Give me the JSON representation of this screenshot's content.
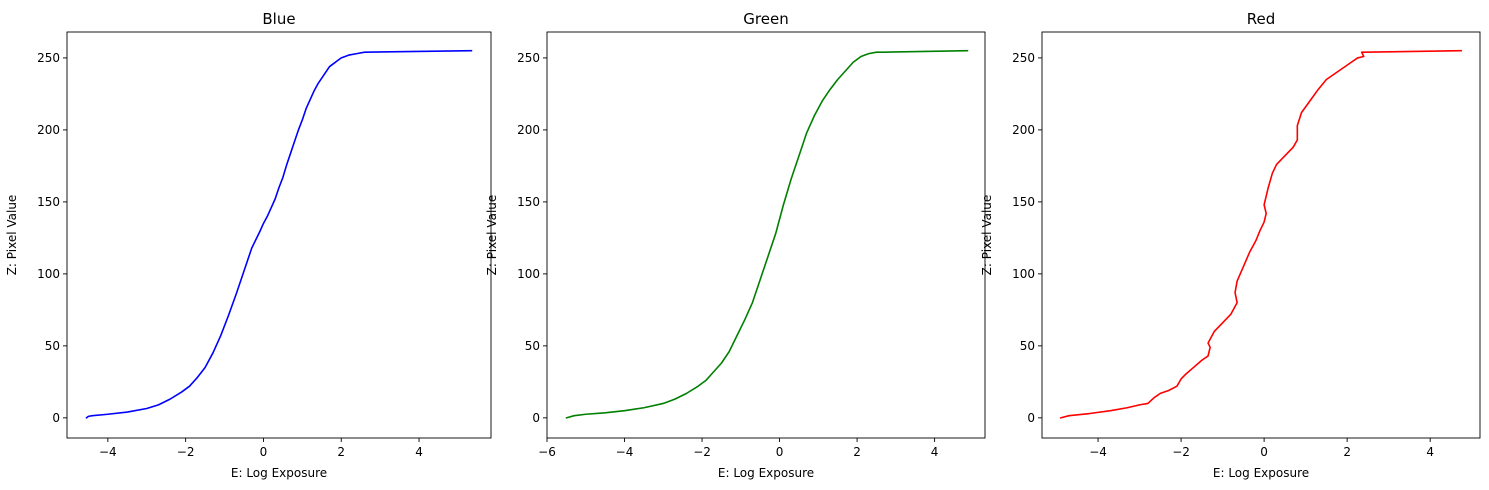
{
  "chart_data": [
    {
      "type": "line",
      "title": "Blue",
      "xlabel": "E: Log Exposure",
      "ylabel": "Z: Pixel Value",
      "xlim": [
        -5.05,
        5.85
      ],
      "ylim": [
        -14,
        268
      ],
      "xticks": [
        -4,
        -2,
        0,
        2,
        4
      ],
      "xtick_labels": [
        "−4",
        "−2",
        "0",
        "2",
        "4"
      ],
      "yticks": [
        0,
        50,
        100,
        150,
        200,
        250
      ],
      "ytick_labels": [
        "0",
        "50",
        "100",
        "150",
        "200",
        "250"
      ],
      "grid": false,
      "color": "#0000ff",
      "series": [
        {
          "x": [
            -4.55,
            -4.5,
            -4.4,
            -4.0,
            -3.5,
            -3.0,
            -2.7,
            -2.4,
            -2.1,
            -1.9,
            -1.7,
            -1.5,
            -1.3,
            -1.1,
            -0.9,
            -0.7,
            -0.5,
            -0.3,
            -0.1,
            0.0,
            0.1,
            0.2,
            0.3,
            0.4,
            0.5,
            0.6,
            0.7,
            0.8,
            0.9,
            1.0,
            1.1,
            1.2,
            1.3,
            1.4,
            1.5,
            1.6,
            1.7,
            1.8,
            1.9,
            2.0,
            2.1,
            2.2,
            2.4,
            2.6,
            5.35
          ],
          "y": [
            0,
            1,
            1.5,
            2.5,
            4,
            6.5,
            9,
            13,
            18,
            22,
            28,
            35,
            45,
            57,
            71,
            86,
            102,
            118,
            129,
            135,
            140,
            146,
            152,
            160,
            167,
            176,
            184,
            192,
            200,
            207,
            215,
            221,
            227,
            232,
            236,
            240,
            244,
            246,
            248,
            250,
            251,
            252,
            253,
            254,
            255
          ]
        }
      ]
    },
    {
      "type": "line",
      "title": "Green",
      "xlabel": "E: Log Exposure",
      "ylabel": "Z: Pixel Value",
      "xlim": [
        -6.0,
        5.3
      ],
      "ylim": [
        -14,
        268
      ],
      "xticks": [
        -6,
        -4,
        -2,
        0,
        2,
        4
      ],
      "xtick_labels": [
        "−6",
        "−4",
        "−2",
        "0",
        "2",
        "4"
      ],
      "yticks": [
        0,
        50,
        100,
        150,
        200,
        250
      ],
      "ytick_labels": [
        "0",
        "50",
        "100",
        "150",
        "200",
        "250"
      ],
      "grid": false,
      "color": "#008000",
      "series": [
        {
          "x": [
            -5.5,
            -5.3,
            -5.0,
            -4.5,
            -4.0,
            -3.5,
            -3.0,
            -2.7,
            -2.4,
            -2.1,
            -1.9,
            -1.7,
            -1.5,
            -1.3,
            -1.1,
            -0.9,
            -0.7,
            -0.5,
            -0.3,
            -0.1,
            0.1,
            0.3,
            0.5,
            0.7,
            0.9,
            1.1,
            1.3,
            1.5,
            1.7,
            1.9,
            2.1,
            2.3,
            2.5,
            2.7,
            4.85
          ],
          "y": [
            0,
            1.5,
            2.5,
            3.5,
            5,
            7,
            10,
            13,
            17,
            22,
            26,
            32,
            38,
            46,
            57,
            68,
            80,
            96,
            112,
            128,
            148,
            166,
            182,
            198,
            210,
            220,
            228,
            235,
            241,
            247,
            251,
            253,
            254,
            254,
            255
          ]
        }
      ]
    },
    {
      "type": "line",
      "title": "Red",
      "xlabel": "E: Log Exposure",
      "ylabel": "Z: Pixel Value",
      "xlim": [
        -5.35,
        5.2
      ],
      "ylim": [
        -14,
        268
      ],
      "xticks": [
        -4,
        -2,
        0,
        2,
        4
      ],
      "xtick_labels": [
        "−4",
        "−2",
        "0",
        "2",
        "4"
      ],
      "yticks": [
        0,
        50,
        100,
        150,
        200,
        250
      ],
      "ytick_labels": [
        "0",
        "50",
        "100",
        "150",
        "200",
        "250"
      ],
      "grid": false,
      "color": "#ff0000",
      "series": [
        {
          "x": [
            -4.9,
            -4.7,
            -4.2,
            -3.7,
            -3.3,
            -3.0,
            -2.8,
            -2.65,
            -2.5,
            -2.3,
            -2.1,
            -2.0,
            -1.9,
            -1.7,
            -1.5,
            -1.35,
            -1.3,
            -1.35,
            -1.2,
            -1.0,
            -0.8,
            -0.65,
            -0.7,
            -0.65,
            -0.5,
            -0.35,
            -0.2,
            -0.1,
            0.0,
            0.05,
            0.0,
            0.1,
            0.2,
            0.3,
            0.5,
            0.7,
            0.8,
            0.8,
            0.9,
            1.1,
            1.3,
            1.5,
            1.8,
            2.1,
            2.25,
            2.4,
            2.35,
            2.4,
            4.75
          ],
          "y": [
            0,
            1.5,
            3,
            5,
            7,
            9,
            10,
            14,
            17,
            19,
            22,
            27,
            30,
            35,
            40,
            43,
            49,
            52,
            60,
            66,
            72,
            80,
            87,
            95,
            105,
            115,
            123,
            130,
            136,
            142,
            148,
            160,
            170,
            176,
            182,
            188,
            193,
            203,
            212,
            220,
            228,
            235,
            241,
            247,
            250,
            251,
            254,
            254,
            255
          ]
        }
      ]
    }
  ]
}
